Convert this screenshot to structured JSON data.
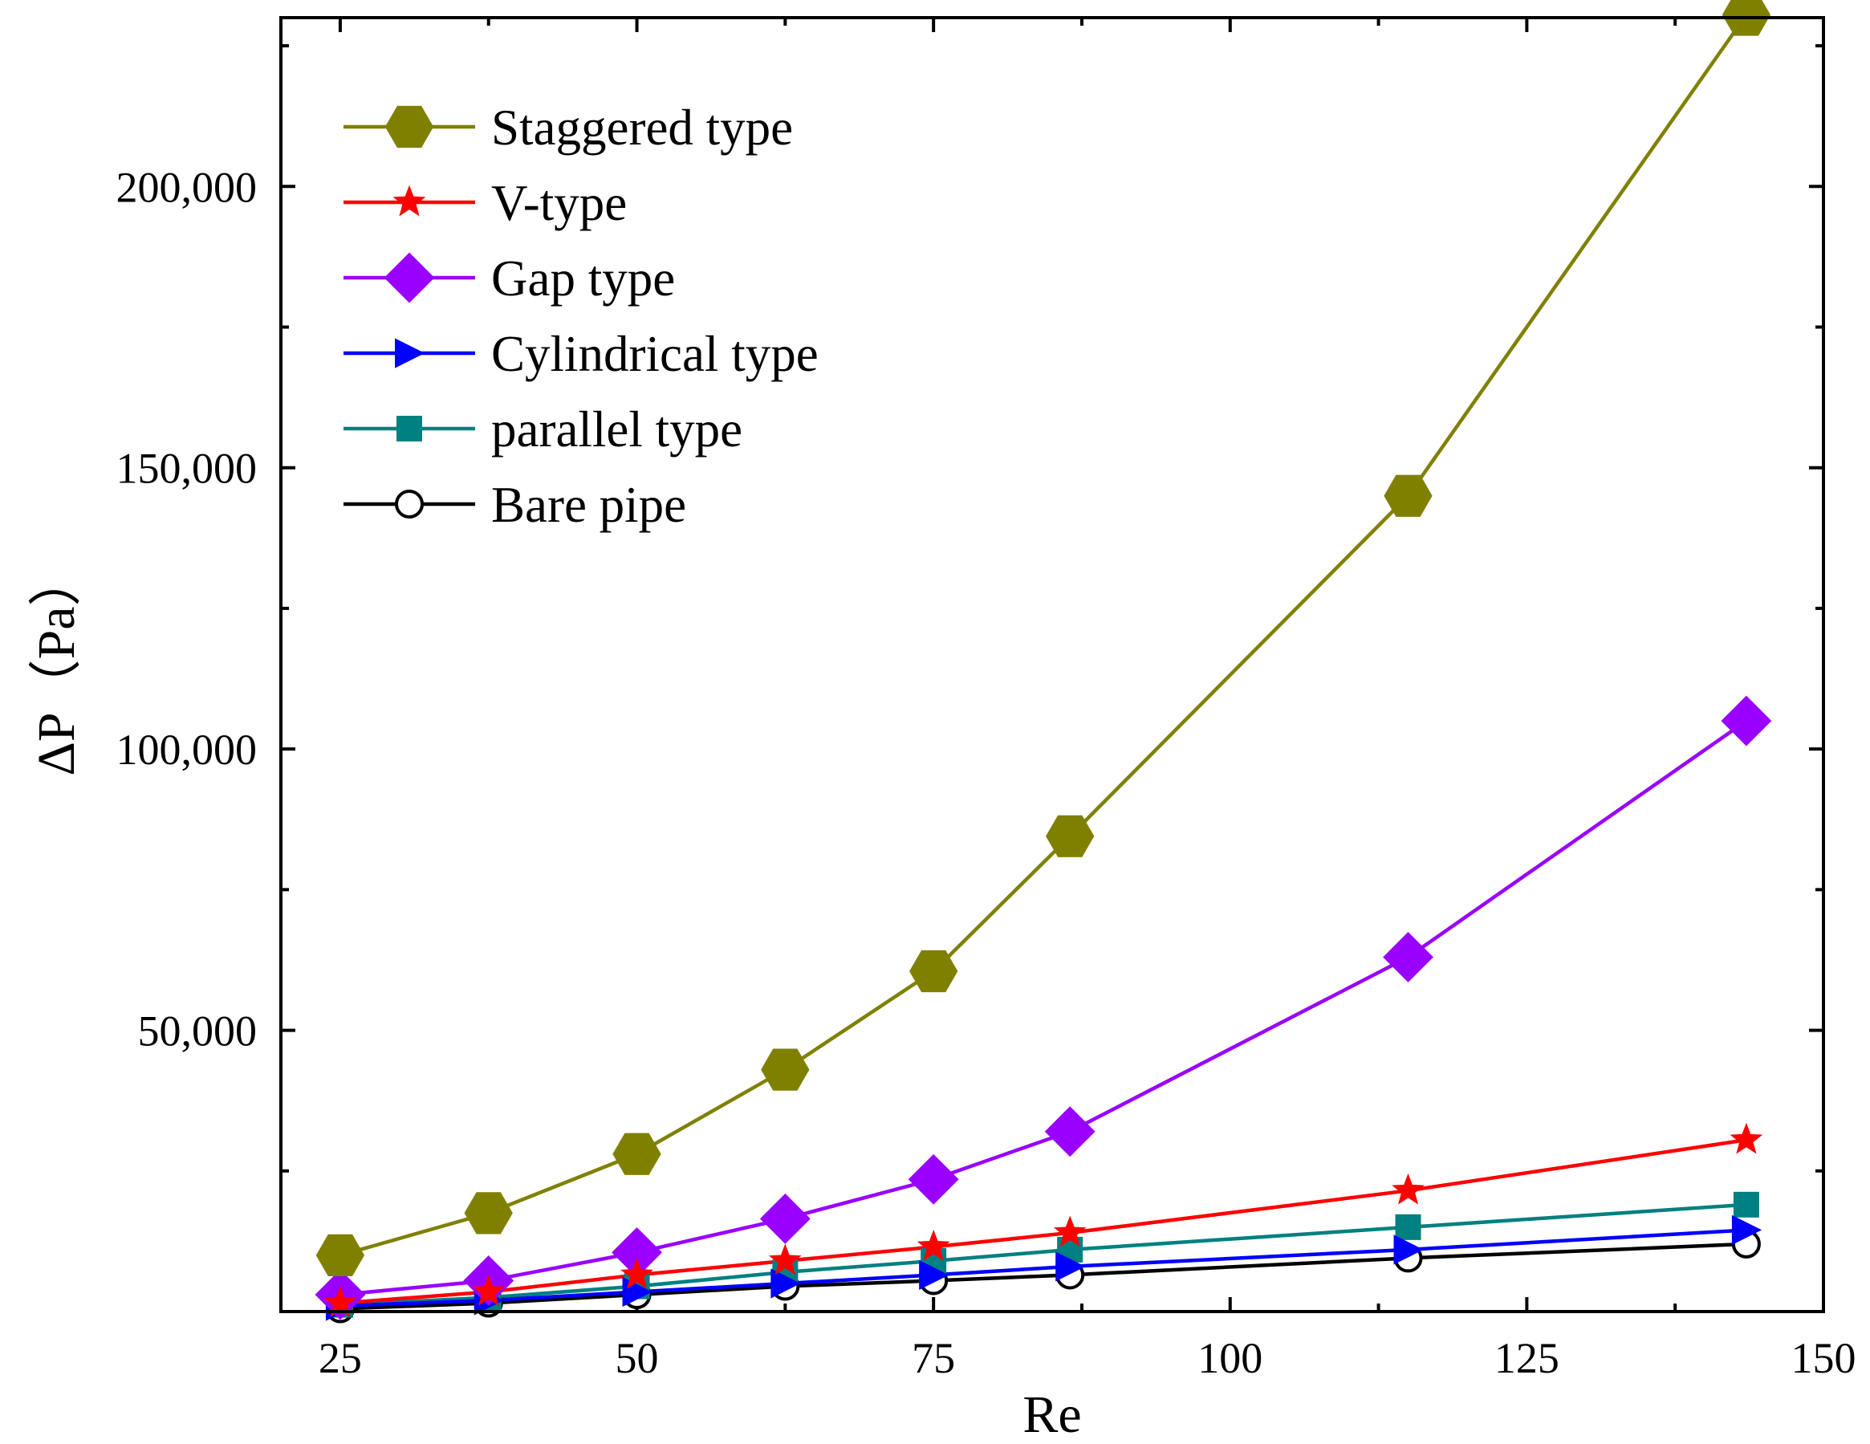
{
  "chart_data": {
    "type": "line",
    "title": "",
    "xlabel": "Re",
    "ylabel": "ΔP（Pa）",
    "xlim": [
      20,
      150
    ],
    "ylim": [
      0,
      230000
    ],
    "x_ticks": [
      25,
      50,
      75,
      100,
      125,
      150
    ],
    "x_tick_labels": [
      "25",
      "50",
      "75",
      "100",
      "125",
      "150"
    ],
    "y_ticks": [
      50000,
      100000,
      150000,
      200000
    ],
    "y_tick_labels": [
      "50,000",
      "100,000",
      "150,000",
      "200,000"
    ],
    "legend_position": "top-left",
    "x": [
      25,
      37.5,
      50,
      62.5,
      75,
      86.5,
      115,
      143.5
    ],
    "series": [
      {
        "name": "Staggered type",
        "color": "#808000",
        "marker": "hexagon",
        "values": [
          10000,
          17500,
          28000,
          43000,
          60500,
          84500,
          145000,
          230500
        ]
      },
      {
        "name": "V-type",
        "color": "#ff0000",
        "marker": "star",
        "values": [
          1500,
          3500,
          6500,
          9000,
          11500,
          14000,
          21500,
          30500
        ]
      },
      {
        "name": "Gap type",
        "color": "#9900ff",
        "marker": "diamond",
        "values": [
          3000,
          5500,
          10500,
          16500,
          23500,
          32000,
          63000,
          105000
        ]
      },
      {
        "name": "Cylindrical type",
        "color": "#0000ff",
        "marker": "triangle-right",
        "values": [
          1000,
          2000,
          3500,
          5000,
          6500,
          8000,
          11000,
          14500
        ]
      },
      {
        "name": "parallel type",
        "color": "#008080",
        "marker": "square",
        "values": [
          1200,
          2500,
          4500,
          7000,
          9000,
          11000,
          15000,
          19000
        ]
      },
      {
        "name": "Bare pipe",
        "color": "#000000",
        "marker": "circle",
        "values": [
          500,
          1500,
          3000,
          4500,
          5500,
          6500,
          9500,
          12000
        ]
      }
    ]
  }
}
